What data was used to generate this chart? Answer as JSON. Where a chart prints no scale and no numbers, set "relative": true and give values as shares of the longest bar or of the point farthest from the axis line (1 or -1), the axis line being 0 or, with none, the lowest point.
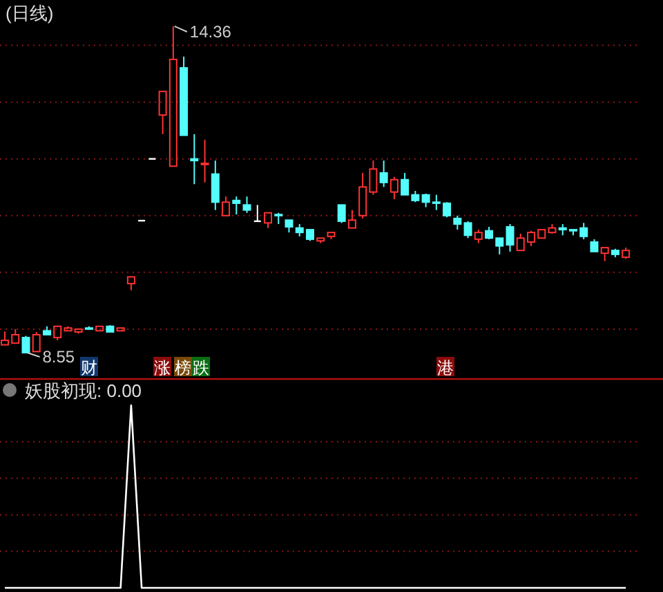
{
  "chart_data": [
    {
      "type": "candlestick",
      "title": "(日线)",
      "categories": [
        null,
        null,
        null,
        null,
        null,
        null,
        null,
        null,
        null,
        null,
        null,
        null,
        null,
        null,
        null,
        null,
        null,
        null,
        null,
        null,
        null,
        null,
        null,
        null,
        null,
        null,
        null,
        null,
        null,
        null,
        null,
        null,
        null,
        null,
        null,
        null,
        null,
        null,
        null,
        null,
        null,
        null,
        null,
        null,
        null,
        null,
        null,
        null,
        null,
        null,
        null,
        null,
        null,
        null,
        null,
        null,
        null,
        null,
        null,
        null
      ],
      "ohlc": [
        [
          8.69,
          8.93,
          8.69,
          8.77
        ],
        [
          8.72,
          8.97,
          8.72,
          8.87
        ],
        [
          8.82,
          8.85,
          8.55,
          8.55
        ],
        [
          8.57,
          8.92,
          8.57,
          8.87
        ],
        [
          8.94,
          9.02,
          8.87,
          8.87
        ],
        [
          8.82,
          9.02,
          8.77,
          9.02
        ],
        [
          8.94,
          9.02,
          8.94,
          8.99
        ],
        [
          8.92,
          8.97,
          8.89,
          8.97
        ],
        [
          8.99,
          9.02,
          8.97,
          8.97
        ],
        [
          8.94,
          9.02,
          8.94,
          9.02
        ],
        [
          9.02,
          9.04,
          8.92,
          8.92
        ],
        [
          8.94,
          8.99,
          8.94,
          8.99
        ],
        [
          9.78,
          9.9,
          9.66,
          9.9
        ],
        [
          10.9,
          10.9,
          10.9,
          10.9
        ],
        [
          12.0,
          12.0,
          12.0,
          12.0
        ],
        [
          12.78,
          13.2,
          12.44,
          13.2
        ],
        [
          11.87,
          14.36,
          11.87,
          13.77
        ],
        [
          13.62,
          13.82,
          12.42,
          12.42
        ],
        [
          12.0,
          12.44,
          11.55,
          11.97
        ],
        [
          11.9,
          12.34,
          11.58,
          11.92
        ],
        [
          11.73,
          11.97,
          11.09,
          11.23
        ],
        [
          10.99,
          11.33,
          10.99,
          11.23
        ],
        [
          11.26,
          11.33,
          11.01,
          11.21
        ],
        [
          11.18,
          11.33,
          11.04,
          11.09
        ],
        [
          10.89,
          11.18,
          10.89,
          10.89
        ],
        [
          10.86,
          11.04,
          10.77,
          11.04
        ],
        [
          11.01,
          11.04,
          10.84,
          10.99
        ],
        [
          10.91,
          10.91,
          10.69,
          10.79
        ],
        [
          10.77,
          10.84,
          10.62,
          10.69
        ],
        [
          10.74,
          10.74,
          10.54,
          10.57
        ],
        [
          10.54,
          10.59,
          10.5,
          10.59
        ],
        [
          10.62,
          10.69,
          10.57,
          10.69
        ],
        [
          11.18,
          11.18,
          10.86,
          10.89
        ],
        [
          10.77,
          11.09,
          10.77,
          10.91
        ],
        [
          10.99,
          11.75,
          10.94,
          11.5
        ],
        [
          11.41,
          11.97,
          11.36,
          11.82
        ],
        [
          11.75,
          11.97,
          11.5,
          11.58
        ],
        [
          11.41,
          11.68,
          11.28,
          11.63
        ],
        [
          11.63,
          11.75,
          11.36,
          11.36
        ],
        [
          11.36,
          11.43,
          11.23,
          11.26
        ],
        [
          11.36,
          11.38,
          11.14,
          11.23
        ],
        [
          11.23,
          11.36,
          11.09,
          11.21
        ],
        [
          11.21,
          11.23,
          10.96,
          10.99
        ],
        [
          10.94,
          10.99,
          10.74,
          10.84
        ],
        [
          10.86,
          10.89,
          10.59,
          10.64
        ],
        [
          10.57,
          10.74,
          10.5,
          10.69
        ],
        [
          10.72,
          10.79,
          10.57,
          10.59
        ],
        [
          10.59,
          10.59,
          10.3,
          10.45
        ],
        [
          10.79,
          10.84,
          10.35,
          10.47
        ],
        [
          10.37,
          10.67,
          10.37,
          10.59
        ],
        [
          10.52,
          10.72,
          10.45,
          10.69
        ],
        [
          10.59,
          10.74,
          10.59,
          10.74
        ],
        [
          10.69,
          10.84,
          10.67,
          10.77
        ],
        [
          10.77,
          10.84,
          10.64,
          10.74
        ],
        [
          10.74,
          10.74,
          10.64,
          10.72
        ],
        [
          10.77,
          10.86,
          10.57,
          10.62
        ],
        [
          10.52,
          10.57,
          10.35,
          10.35
        ],
        [
          10.32,
          10.42,
          10.18,
          10.42
        ],
        [
          10.37,
          10.4,
          10.25,
          10.3
        ],
        [
          10.25,
          10.42,
          10.22,
          10.37
        ]
      ],
      "colors": [
        "#ff3232",
        "#ff3232",
        "#54fcfc",
        "#ff3232",
        "#54fcfc",
        "#ff3232",
        "#ff3232",
        "#ff3232",
        "#54fcfc",
        "#ff3232",
        "#54fcfc",
        "#ff3232",
        "#ff3232",
        "#ffffff",
        "#ffffff",
        "#ff3232",
        "#ff3232",
        "#54fcfc",
        "#54fcfc",
        "#ff3232",
        "#54fcfc",
        "#ff3232",
        "#54fcfc",
        "#54fcfc",
        "#ffffff",
        "#ff3232",
        "#54fcfc",
        "#54fcfc",
        "#54fcfc",
        "#54fcfc",
        "#ff3232",
        "#ff3232",
        "#54fcfc",
        "#ff3232",
        "#ff3232",
        "#ff3232",
        "#54fcfc",
        "#ff3232",
        "#54fcfc",
        "#54fcfc",
        "#54fcfc",
        "#54fcfc",
        "#54fcfc",
        "#54fcfc",
        "#54fcfc",
        "#ff3232",
        "#54fcfc",
        "#54fcfc",
        "#54fcfc",
        "#ff3232",
        "#ff3232",
        "#ff3232",
        "#ff3232",
        "#54fcfc",
        "#54fcfc",
        "#54fcfc",
        "#54fcfc",
        "#ff3232",
        "#54fcfc",
        "#ff3232"
      ],
      "yticks": [
        {
          "value": 14.02,
          "label": null
        },
        {
          "value": 13.01,
          "label": null
        },
        {
          "value": 12.0,
          "label": null
        },
        {
          "value": 10.99,
          "label": null
        },
        {
          "value": 9.98,
          "label": null
        },
        {
          "value": 8.97,
          "label": null
        }
      ],
      "grid": "y",
      "annotations": [
        "14.36",
        "8.55",
        "财",
        "涨",
        "榜",
        "跌",
        "港"
      ]
    },
    {
      "type": "line",
      "title": "妖股初现: 0.00",
      "relative": true,
      "ref_lines": [
        {
          "axis": "y",
          "value": 0.2,
          "color": "#8c1414",
          "line_style": "dotted"
        },
        {
          "axis": "y",
          "value": 0.4,
          "color": "#8c1414",
          "line_style": "dotted"
        },
        {
          "axis": "y",
          "value": 0.6,
          "color": "#8c1414",
          "line_style": "dotted"
        },
        {
          "axis": "y",
          "value": 0.8,
          "color": "#8c1414",
          "line_style": "dotted"
        }
      ],
      "categories": [
        null,
        null,
        null,
        null,
        null,
        null,
        null,
        null,
        null,
        null,
        null,
        null,
        null,
        null,
        null,
        null,
        null,
        null,
        null,
        null,
        null,
        null,
        null,
        null,
        null,
        null,
        null,
        null,
        null,
        null,
        null,
        null,
        null,
        null,
        null,
        null,
        null,
        null,
        null,
        null,
        null,
        null,
        null,
        null,
        null,
        null,
        null,
        null,
        null,
        null,
        null,
        null,
        null,
        null,
        null,
        null,
        null,
        null,
        null,
        null
      ],
      "series": [
        {
          "color": "#ffffff",
          "values": [
            0,
            0,
            0,
            0,
            0,
            0,
            0,
            0,
            0,
            0,
            0,
            0,
            1,
            0,
            0,
            0,
            0,
            0,
            0,
            0,
            0,
            0,
            0,
            0,
            0,
            0,
            0,
            0,
            0,
            0,
            0,
            0,
            0,
            0,
            0,
            0,
            0,
            0,
            0,
            0,
            0,
            0,
            0,
            0,
            0,
            0,
            0,
            0,
            0,
            0,
            0,
            0,
            0,
            0,
            0,
            0,
            0,
            0,
            0,
            0
          ]
        }
      ]
    }
  ]
}
